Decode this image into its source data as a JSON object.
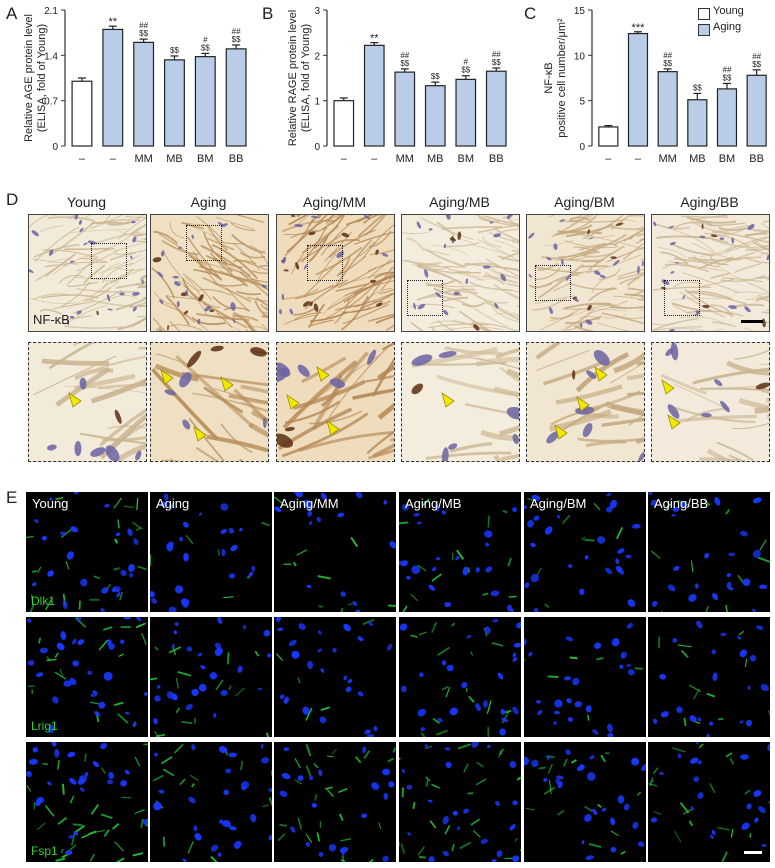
{
  "panel_labels": {
    "A": "A",
    "B": "B",
    "C": "C",
    "D": "D",
    "E": "E"
  },
  "legend": {
    "young": "Young",
    "aging": "Aging",
    "young_color": "#ffffff",
    "aging_color": "#b9cde8"
  },
  "chart_data": [
    {
      "type": "bar",
      "panel": "A",
      "ylabel": "Relative AGE protein level",
      "ylabel2": "(ELISA, fold of Young)",
      "categories": [
        "–",
        "–",
        "MM",
        "MB",
        "BM",
        "BB"
      ],
      "values": [
        1.0,
        1.8,
        1.6,
        1.33,
        1.38,
        1.5
      ],
      "errors": [
        0.05,
        0.05,
        0.05,
        0.06,
        0.05,
        0.06
      ],
      "colors": [
        "#ffffff",
        "#b9cde8",
        "#b9cde8",
        "#b9cde8",
        "#b9cde8",
        "#b9cde8"
      ],
      "annot_top": [
        "",
        "**",
        "##",
        "",
        "#",
        "##"
      ],
      "annot_bottom": [
        "",
        "",
        "$$",
        "$$",
        "$$",
        "$$"
      ],
      "yticks": [
        "0",
        "0.7",
        "1.4",
        "2.1"
      ],
      "ylim": [
        0,
        2.1
      ]
    },
    {
      "type": "bar",
      "panel": "B",
      "ylabel": "Relative RAGE protein level",
      "ylabel2": "(ELISA, fold of Young)",
      "categories": [
        "–",
        "–",
        "MM",
        "MB",
        "BM",
        "BB"
      ],
      "values": [
        1.0,
        2.22,
        1.63,
        1.33,
        1.47,
        1.65
      ],
      "errors": [
        0.06,
        0.06,
        0.07,
        0.08,
        0.08,
        0.07
      ],
      "colors": [
        "#ffffff",
        "#b9cde8",
        "#b9cde8",
        "#b9cde8",
        "#b9cde8",
        "#b9cde8"
      ],
      "annot_top": [
        "",
        "**",
        "##",
        "",
        "#",
        "##"
      ],
      "annot_bottom": [
        "",
        "",
        "$$",
        "$$",
        "$$",
        "$$"
      ],
      "yticks": [
        "0",
        "1",
        "2",
        "3"
      ],
      "ylim": [
        0,
        3
      ]
    },
    {
      "type": "bar",
      "panel": "C",
      "ylabel": "NF-κB",
      "ylabel2": "positive cell number/μm²",
      "categories": [
        "–",
        "–",
        "MM",
        "MB",
        "BM",
        "BB"
      ],
      "values": [
        2.1,
        12.4,
        8.2,
        5.1,
        6.3,
        7.8
      ],
      "errors": [
        0.15,
        0.2,
        0.3,
        0.7,
        0.6,
        0.6
      ],
      "colors": [
        "#ffffff",
        "#b9cde8",
        "#b9cde8",
        "#b9cde8",
        "#b9cde8",
        "#b9cde8"
      ],
      "annot_top": [
        "",
        "***",
        "##",
        "",
        "##",
        "##"
      ],
      "annot_bottom": [
        "",
        "",
        "$$",
        "$$",
        "$$",
        "$$"
      ],
      "yticks": [
        "0",
        "5",
        "10",
        "15"
      ],
      "ylim": [
        0,
        15
      ]
    }
  ],
  "ihc_titles": [
    "Young",
    "Aging",
    "Aging/MM",
    "Aging/MB",
    "Aging/BM",
    "Aging/BB"
  ],
  "ihc_marker": "NF-κB",
  "if_titles": [
    "Young",
    "Aging",
    "Aging/MM",
    "Aging/MB",
    "Aging/BM",
    "Aging/BB"
  ],
  "if_markers": [
    "Dlk1",
    "Lrig1",
    "Fsp1"
  ],
  "colors": {
    "ihc_bg": "#efe4cf",
    "nucleus": "#6a63a3",
    "dab": "#5a2e10",
    "arrow": "#f2e700",
    "fluor_blue": "#1838ff",
    "fluor_green": "#23c83a"
  }
}
